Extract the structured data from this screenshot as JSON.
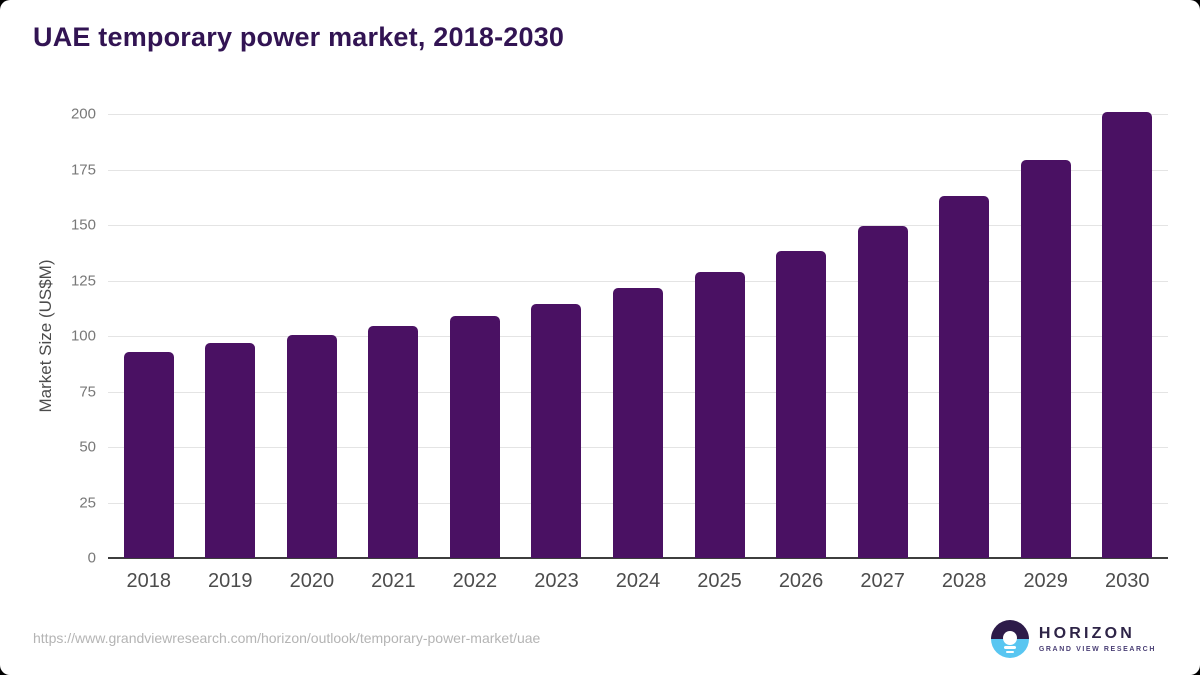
{
  "page": {
    "title": "UAE temporary power market, 2018-2030"
  },
  "chart_data": {
    "type": "bar",
    "title": "UAE temporary power market, 2018-2030",
    "categories": [
      "2018",
      "2019",
      "2020",
      "2021",
      "2022",
      "2023",
      "2024",
      "2025",
      "2026",
      "2027",
      "2028",
      "2029",
      "2030"
    ],
    "values": [
      93,
      97,
      100.5,
      104.5,
      109,
      114.5,
      121.5,
      129,
      138.5,
      149.5,
      163,
      179.5,
      201
    ],
    "xlabel": "",
    "ylabel": "Market Size (US$M)",
    "ylim": [
      0,
      200
    ],
    "yticks": [
      0,
      25,
      50,
      75,
      100,
      125,
      150,
      175,
      200
    ],
    "grid": "horizontal",
    "legend": "none",
    "bar_color": "#4a1163"
  },
  "colors": {
    "title_text": "#321453",
    "bar_fill": "#4a1163",
    "gridline": "#e4e4e4",
    "axis_line": "#3e3e3e",
    "y_tick_text": "#787878",
    "x_tick_text": "#4c4c4c",
    "url_text": "#b4b4b4",
    "logo_dark_purple": "#2d1b49",
    "logo_light_blue": "#59c6f1",
    "logo_wordmark_text": "#2e2447",
    "logo_subtitle_text": "#4a3f75"
  },
  "footer": {
    "source_url": "https://www.grandviewresearch.com/horizon/outlook/temporary-power-market/uae",
    "logo": {
      "name": "HORIZON",
      "subtitle": "GRAND VIEW RESEARCH"
    }
  }
}
